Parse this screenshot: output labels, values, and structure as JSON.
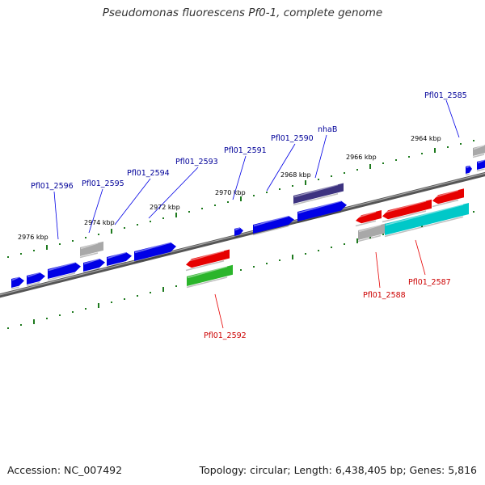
{
  "title": "Pseudomonas fluorescens Pf0-1, complete genome",
  "footer": {
    "accession": "Accession: NC_007492",
    "stats": "Topology: circular; Length: 6,438,405 bp; Genes: 5,816"
  },
  "scale_labels": [
    "2964 kbp",
    "2966 kbp",
    "2968 kbp",
    "2970 kbp",
    "2972 kbp",
    "2974 kbp",
    "2976 kbp"
  ],
  "gene_labels": {
    "forward": [
      "Pfl01_2585",
      "nhaB",
      "Pfl01_2590",
      "Pfl01_2591",
      "Pfl01_2593",
      "Pfl01_2594",
      "Pfl01_2595",
      "Pfl01_2596"
    ],
    "reverse": [
      "Pfl01_2587",
      "Pfl01_2588",
      "Pfl01_2592"
    ]
  },
  "colors": {
    "forward_gene": "#0000e6",
    "forward_label": "#000099",
    "reverse_gene": "#e60000",
    "reverse_label": "#cc0000",
    "nhaB_gene": "#3d3380",
    "green_gene": "#2bb52b",
    "cyan_gene": "#00c8c8",
    "grey_gene": "#a8a8a8",
    "backbone": "#777777",
    "tick": "#1e7a1e"
  }
}
